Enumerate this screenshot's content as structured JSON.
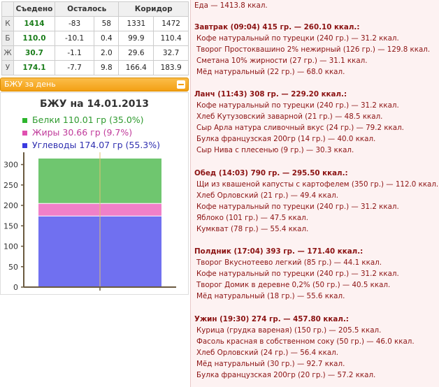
{
  "table": {
    "headers": [
      "Съедено",
      "Осталось",
      "Коридор"
    ],
    "rows": [
      {
        "label": "К",
        "eaten": "1414",
        "left1": "-83",
        "left2": "58",
        "c1": "1331",
        "c2": "1472"
      },
      {
        "label": "Б",
        "eaten": "110.0",
        "left1": "-10.1",
        "left2": "0.4",
        "c1": "99.9",
        "c2": "110.4"
      },
      {
        "label": "Ж",
        "eaten": "30.7",
        "left1": "-1.1",
        "left2": "2.0",
        "c1": "29.6",
        "c2": "32.7"
      },
      {
        "label": "У",
        "eaten": "174.1",
        "left1": "-7.7",
        "left2": "9.8",
        "c1": "166.4",
        "c2": "183.9"
      }
    ]
  },
  "panel": {
    "label": "БЖУ за день"
  },
  "chart_data": {
    "type": "bar",
    "title": "БЖУ на 14.01.2013",
    "stacked": true,
    "categories": [
      ""
    ],
    "series": [
      {
        "name": "Углеводы 174.07 гр (55.3%)",
        "values": [
          174.07
        ],
        "color": "#7070f0"
      },
      {
        "name": "Жиры 30.66 гр (9.7%)",
        "values": [
          30.66
        ],
        "color": "#f080c8"
      },
      {
        "name": "Белки 110.01 гр (35.0%)",
        "values": [
          110.01
        ],
        "color": "#6fc66f"
      }
    ],
    "legend": [
      {
        "text": "Белки 110.01 гр (35.0%)",
        "color": "#2db52d",
        "text_color": "#2e9a2e"
      },
      {
        "text": "Жиры 30.66 гр (9.7%)",
        "color": "#e050b0",
        "text_color": "#c03a9a"
      },
      {
        "text": "Углеводы 174.07 гр (55.3%)",
        "color": "#3a3ae0",
        "text_color": "#3030b0"
      }
    ],
    "yticks": [
      "300",
      "250",
      "200",
      "150",
      "100",
      "50",
      "0"
    ],
    "ylim": [
      0,
      330
    ],
    "grid": false,
    "legend_placement": "top-left"
  },
  "meals": {
    "top": "Еда — 1413.8 ккал.",
    "list": [
      {
        "header": "Завтрак (09:04) 415 гр. — 260.10 ккал.:",
        "items": [
          "Кофе натуральный по турецки (240 гр.) — 31.2 ккал.",
          "Творог Простоквашино 2% нежирный (126 гр.) — 129.8 ккал.",
          "Сметана 10% жирности (27 гр.) — 31.1 ккал.",
          "Мёд натуральный (22 гр.) — 68.0 ккал."
        ]
      },
      {
        "header": "Ланч (11:43) 308 гр. — 229.20 ккал.:",
        "items": [
          "Кофе натуральный по турецки (240 гр.) — 31.2 ккал.",
          "Хлеб Кутузовский заварной (21 гр.) — 48.5 ккал.",
          "Сыр Арла натура сливочный вкус (24 гр.) — 79.2 ккал.",
          "Булка французская 200гр (14 гр.) — 40.0 ккал.",
          "Сыр Нива с плесенью (9 гр.) — 30.3 ккал."
        ]
      },
      {
        "header": "Обед (14:03) 790 гр. — 295.50 ккал.:",
        "items": [
          "Щи из квашеной капусты с картофелем (350 гр.) — 112.0 ккал.",
          "Хлеб Орловский (21 гр.) — 49.4 ккал.",
          "Кофе натуральный по турецки (240 гр.) — 31.2 ккал.",
          "Яблоко (101 гр.) — 47.5 ккал.",
          "Кумкват (78 гр.) — 55.4 ккал."
        ]
      },
      {
        "header": "Полдник (17:04) 393 гр. — 171.40 ккал.:",
        "items": [
          "Творог Вкуснотеево легкий (85 гр.) — 44.1 ккал.",
          "Кофе натуральный по турецки (240 гр.) — 31.2 ккал.",
          "Творог Домик в деревне 0,2% (50 гр.) — 40.5 ккал.",
          "Мёд натуральный (18 гр.) — 55.6 ккал."
        ]
      },
      {
        "header": "Ужин (19:30) 274 гр. — 457.80 ккал.:",
        "items": [
          "Курица (грудка вареная) (150 гр.) — 205.5 ккал.",
          "Фасоль красная в собственном соку (50 гр.) — 46.0 ккал.",
          "Хлеб Орловский (24 гр.) — 56.4 ккал.",
          "Мёд натуральный (30 гр.) — 92.7 ккал.",
          "Булка французская 200гр (20 гр.) — 57.2 ккал."
        ]
      }
    ]
  }
}
